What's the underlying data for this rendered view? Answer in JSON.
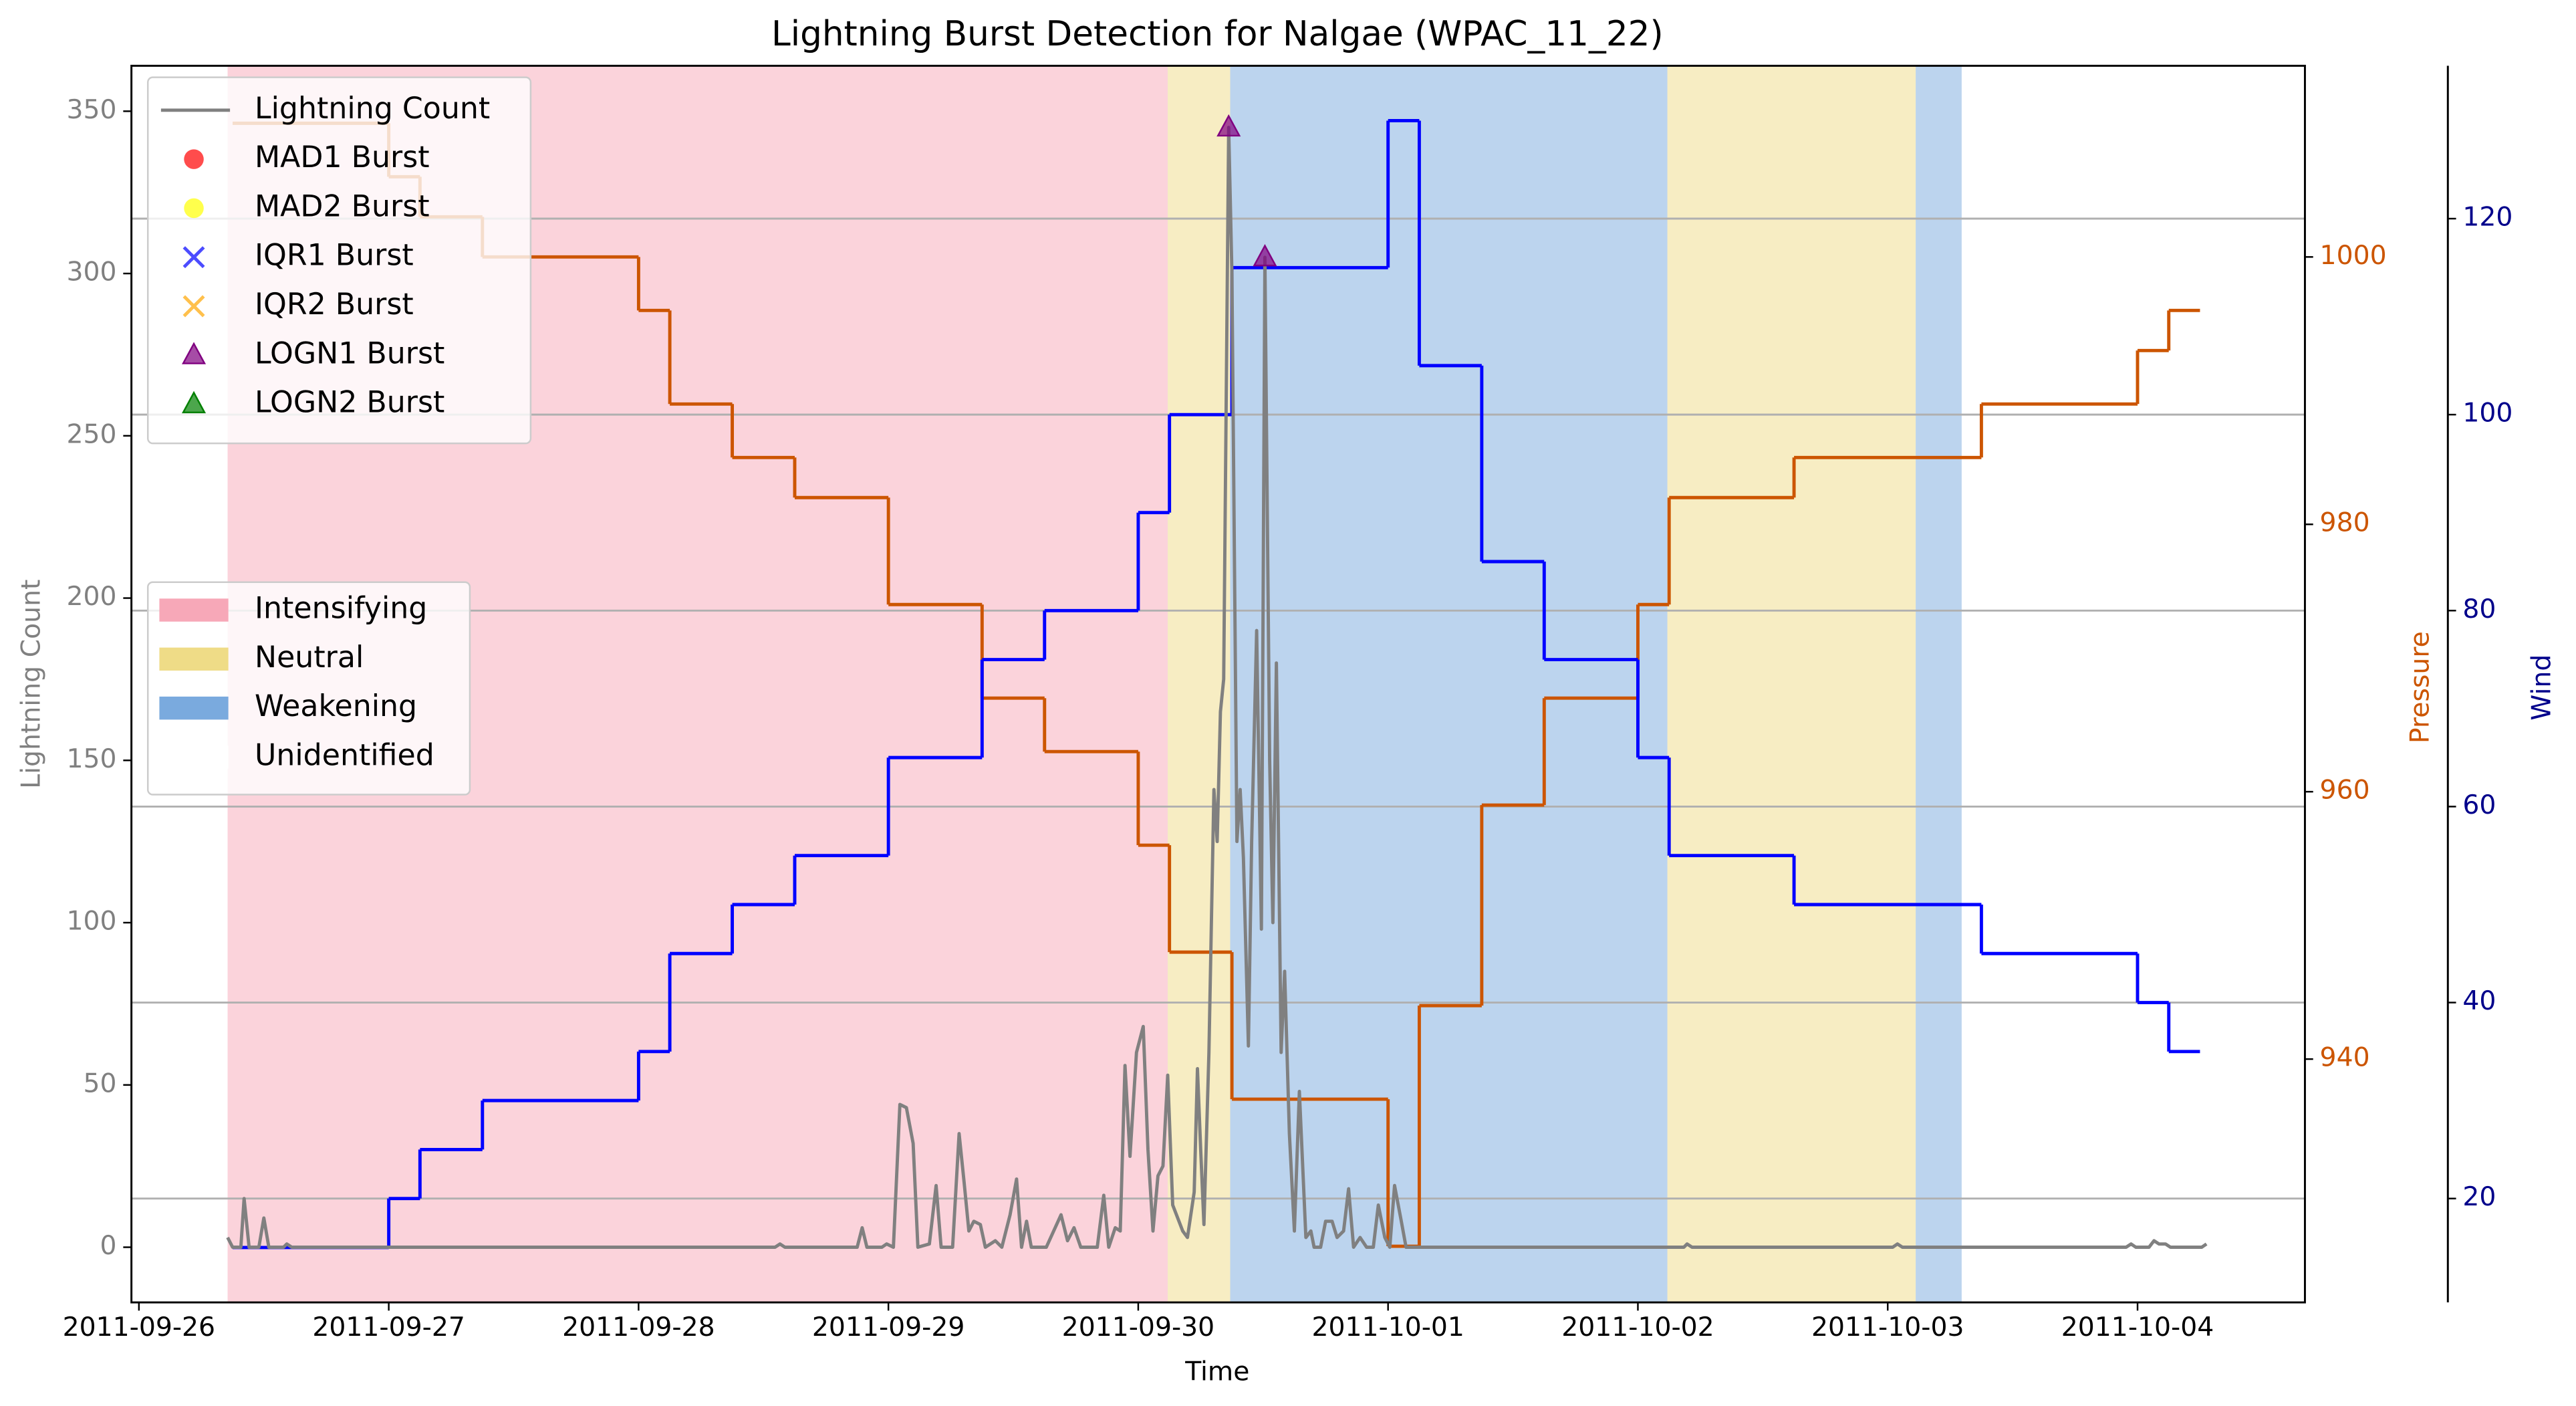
{
  "chart_data": {
    "type": "line",
    "title": "Lightning Burst Detection for Nalgae (WPAC_11_22)",
    "x_label": "Time",
    "y_label": "Lightning Count",
    "y2_label": "Pressure",
    "y3_label": "Wind",
    "y_color": "gray",
    "y2_color": "#cc5500",
    "y3_color": "#00008b",
    "xlim": [
      -0.03,
      8.67
    ],
    "xticks": [
      {
        "value": 0,
        "label": "2011-09-26"
      },
      {
        "value": 1,
        "label": "2011-09-27"
      },
      {
        "value": 2,
        "label": "2011-09-28"
      },
      {
        "value": 3,
        "label": "2011-09-29"
      },
      {
        "value": 4,
        "label": "2011-09-30"
      },
      {
        "value": 5,
        "label": "2011-10-01"
      },
      {
        "value": 6,
        "label": "2011-10-02"
      },
      {
        "value": 7,
        "label": "2011-10-03"
      },
      {
        "value": 8,
        "label": "2011-10-04"
      }
    ],
    "ylim": [
      -17,
      364
    ],
    "yticks": [
      0,
      50,
      100,
      150,
      200,
      250,
      300,
      350
    ],
    "y2lim": [
      921.8,
      1014.3
    ],
    "y2ticks": [
      940,
      960,
      980,
      1000
    ],
    "y3lim": [
      9.4,
      135.6
    ],
    "y3ticks": [
      20,
      40,
      60,
      80,
      100,
      120
    ],
    "grid": "y3",
    "legend": "upper left",
    "series": [
      {
        "name": "Lightning Count",
        "color": "gray",
        "x": [
          0.355,
          0.375,
          0.408,
          0.421,
          0.441,
          0.48,
          0.5,
          0.52,
          0.579,
          0.592,
          0.612,
          2.546,
          2.566,
          2.586,
          2.875,
          2.895,
          2.914,
          2.974,
          2.993,
          3.02,
          3.046,
          3.072,
          3.099,
          3.118,
          3.164,
          3.191,
          3.211,
          3.257,
          3.283,
          3.303,
          3.322,
          3.342,
          3.368,
          3.388,
          3.428,
          3.454,
          3.487,
          3.513,
          3.533,
          3.553,
          3.572,
          3.632,
          3.691,
          3.717,
          3.743,
          3.77,
          3.836,
          3.862,
          3.882,
          3.908,
          3.928,
          3.947,
          3.967,
          3.993,
          4.02,
          4.039,
          4.059,
          4.079,
          4.099,
          4.118,
          4.138,
          4.178,
          4.197,
          4.224,
          4.237,
          4.25,
          4.263,
          4.283,
          4.303,
          4.316,
          4.329,
          4.342,
          4.362,
          4.375,
          4.395,
          4.408,
          4.421,
          4.441,
          4.454,
          4.474,
          4.493,
          4.507,
          4.526,
          4.539,
          4.553,
          4.572,
          4.586,
          4.605,
          4.625,
          4.645,
          4.671,
          4.691,
          4.704,
          4.73,
          4.75,
          4.776,
          4.796,
          4.822,
          4.842,
          4.862,
          4.888,
          4.914,
          4.941,
          4.961,
          4.987,
          5.007,
          5.026,
          5.053,
          5.072,
          6.184,
          6.197,
          6.217,
          7.02,
          7.039,
          7.059,
          7.954,
          7.974,
          7.993,
          8.046,
          8.066,
          8.086,
          8.112,
          8.132,
          8.257,
          8.276
        ],
        "values": [
          3,
          0,
          0,
          15,
          0,
          0,
          9,
          0,
          0,
          1,
          0,
          0,
          1,
          0,
          0,
          6,
          0,
          0,
          1,
          0,
          44,
          43,
          32,
          0,
          1,
          19,
          0,
          0,
          35,
          20,
          5,
          8,
          7,
          0,
          2,
          0,
          10,
          21,
          0,
          8,
          0,
          0,
          10,
          2,
          6,
          0,
          0,
          16,
          0,
          6,
          5,
          56,
          28,
          60,
          68,
          30,
          5,
          22,
          25,
          53,
          13,
          5,
          3,
          17,
          55,
          30,
          7,
          60,
          141,
          125,
          165,
          175,
          345,
          300,
          125,
          141,
          120,
          62,
          125,
          190,
          98,
          305,
          150,
          100,
          180,
          60,
          85,
          35,
          5,
          48,
          3,
          5,
          0,
          0,
          8,
          8,
          3,
          5,
          18,
          0,
          3,
          0,
          0,
          13,
          3,
          0,
          19,
          8,
          0,
          0,
          1,
          0,
          0,
          1,
          0,
          0,
          1,
          0,
          0,
          2,
          1,
          1,
          0,
          0,
          1
        ]
      }
    ],
    "bursts": [
      {
        "name": "MAD1 Burst",
        "color": "red",
        "marker": "circle",
        "x": [],
        "values": []
      },
      {
        "name": "MAD2 Burst",
        "color": "yellow",
        "marker": "circle",
        "x": [],
        "values": []
      },
      {
        "name": "IQR1 Burst",
        "color": "blue",
        "marker": "x",
        "x": [],
        "values": []
      },
      {
        "name": "IQR2 Burst",
        "color": "orange",
        "marker": "x",
        "x": [],
        "values": []
      },
      {
        "name": "LOGN1 Burst",
        "color": "purple",
        "marker": "triangle",
        "x": [
          4.362,
          4.507
        ],
        "values": [
          345,
          305
        ]
      },
      {
        "name": "LOGN2 Burst",
        "color": "green",
        "marker": "triangle",
        "x": [],
        "values": []
      }
    ],
    "step_x": [
      0.375,
      1,
      1.125,
      1.375,
      2,
      2.125,
      2.375,
      2.625,
      3,
      3.375,
      3.625,
      4,
      4.125,
      4.375,
      5,
      5.125,
      5.375,
      5.625,
      6,
      6.125,
      6.625,
      7.375,
      8,
      8.125,
      8.25
    ],
    "step_series": [
      {
        "axis": "y2",
        "color": "#cc5500",
        "values": [
          1010,
          1006,
          1003,
          1000,
          996,
          989,
          985,
          982,
          974,
          967,
          963,
          956,
          948,
          937,
          926,
          944,
          959,
          967,
          974,
          982,
          985,
          989,
          993,
          996,
          996
        ]
      },
      {
        "axis": "y3",
        "color": "blue",
        "values": [
          15,
          20,
          25,
          30,
          35,
          45,
          50,
          55,
          65,
          75,
          80,
          90,
          100,
          115,
          130,
          105,
          85,
          75,
          65,
          55,
          50,
          45,
          40,
          35,
          35
        ]
      }
    ],
    "phases": {
      "legend": "center left",
      "items": [
        {
          "name": "Intensifying",
          "color": "#f7a8b8"
        },
        {
          "name": "Neutral",
          "color": "#efdc87"
        },
        {
          "name": "Weakening",
          "color": "#7aaade"
        },
        {
          "name": "Unidentified",
          "color": "#ffffff"
        }
      ],
      "spans": [
        {
          "start": 0.355,
          "end": 4.118,
          "phase": "Intensifying"
        },
        {
          "start": 4.118,
          "end": 4.368,
          "phase": "Neutral"
        },
        {
          "start": 4.368,
          "end": 6.118,
          "phase": "Weakening"
        },
        {
          "start": 6.118,
          "end": 7.112,
          "phase": "Neutral"
        },
        {
          "start": 7.112,
          "end": 7.296,
          "phase": "Weakening"
        }
      ]
    }
  }
}
